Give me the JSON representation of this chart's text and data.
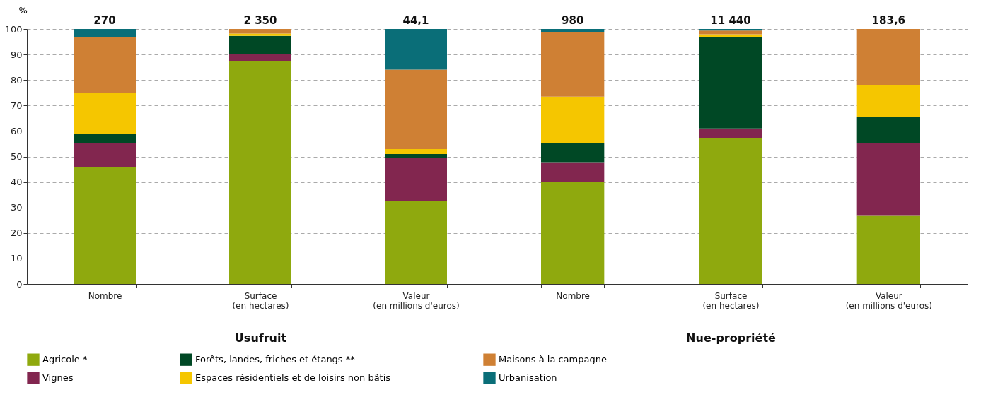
{
  "chart_data": [
    {
      "type": "bar",
      "stacked": true,
      "ylabel": "%",
      "xlabel": "Usufruit",
      "categories": [
        "Nombre",
        "Surface\n(en hectares)",
        "Valeur\n(en millions d'euros)"
      ],
      "series": [
        {
          "name": "Agricole *",
          "color": "#8fa90e",
          "values": [
            46,
            87.3,
            32.5
          ]
        },
        {
          "name": "Vignes",
          "color": "#82264f",
          "values": [
            9.2,
            2.7,
            17.1
          ]
        },
        {
          "name": "Forêts, landes, friches et étangs **",
          "color": "#004825",
          "values": [
            3.8,
            7.3,
            1.4
          ]
        },
        {
          "name": "Espaces résidentiels et de loisirs non bâtis",
          "color": "#f5c600",
          "values": [
            15.8,
            0.9,
            1.9
          ]
        },
        {
          "name": "Maisons à la campagne",
          "color": "#cf8034",
          "values": [
            21.9,
            1.8,
            31.2
          ]
        },
        {
          "name": "Urbanisation",
          "color": "#0a6e78",
          "values": [
            3.3,
            0,
            15.9
          ]
        }
      ],
      "annotations": [
        {
          "text": "270",
          "x": "Nombre",
          "y": 100
        },
        {
          "text": "2 350",
          "x": "Surface\n(en hectares)",
          "y": 100
        },
        {
          "text": "44,1",
          "x": "Valeur\n(en millions d'euros)",
          "y": 100
        }
      ],
      "ylim": [
        0,
        100
      ],
      "yticks": [
        0,
        10,
        20,
        30,
        40,
        50,
        60,
        70,
        80,
        90,
        100
      ],
      "grid": "y",
      "legend": "bottom"
    },
    {
      "type": "bar",
      "stacked": true,
      "xlabel": "Nue-propriété",
      "categories": [
        "Nombre",
        "Surface\n(en hectares)",
        "Valeur\n(en millions d'euros)"
      ],
      "series": [
        {
          "name": "Agricole *",
          "color": "#8fa90e",
          "values": [
            40,
            57.3,
            26.7
          ]
        },
        {
          "name": "Vignes",
          "color": "#82264f",
          "values": [
            7.5,
            3.7,
            28.5
          ]
        },
        {
          "name": "Forêts, landes, friches et étangs **",
          "color": "#004825",
          "values": [
            7.8,
            35.9,
            10.4
          ]
        },
        {
          "name": "Espaces résidentiels et de loisirs non bâtis",
          "color": "#f5c600",
          "values": [
            18.2,
            1.0,
            12.3
          ]
        },
        {
          "name": "Maisons à la campagne",
          "color": "#cf8034",
          "values": [
            25.1,
            1.5,
            22.1
          ]
        },
        {
          "name": "Urbanisation",
          "color": "#0a6e78",
          "values": [
            1.4,
            0.6,
            0
          ]
        }
      ],
      "annotations": [
        {
          "text": "980",
          "x": "Nombre",
          "y": 100
        },
        {
          "text": "11 440",
          "x": "Surface\n(en hectares)",
          "y": 100
        },
        {
          "text": "183,6",
          "x": "Valeur\n(en millions d'euros)",
          "y": 100
        }
      ],
      "ylim": [
        0,
        100
      ],
      "yticks": [
        0,
        10,
        20,
        30,
        40,
        50,
        60,
        70,
        80,
        90,
        100
      ],
      "grid": "y",
      "tick_labels": "x",
      "legend": "bottom"
    }
  ]
}
